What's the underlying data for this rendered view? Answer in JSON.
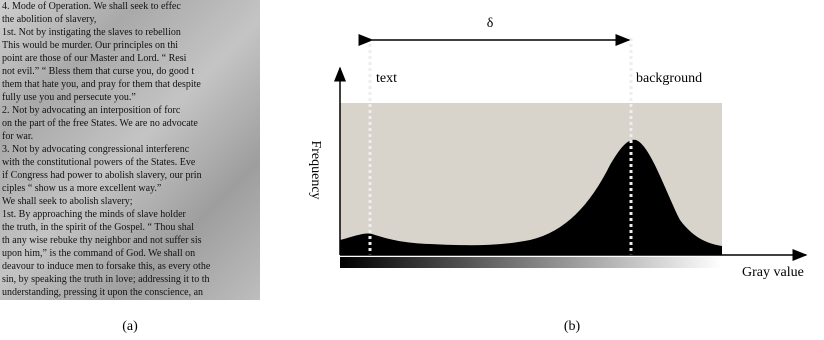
{
  "panel_a": {
    "caption": "(a)",
    "lines": [
      "4.  Mode of Operation.  We shall seek to effec",
      "the abolition of slavery,",
      "1st.  Not by instigating the slaves to rebellion",
      "This would be murder.  Our principles on thi",
      "point are those of our Master and Lord.  “ Resi",
      "not evil.”  “ Bless them that curse you, do good t",
      "them that hate you, and pray for them that despite",
      "fully use you and persecute you.”",
      "2.  Not by advocating an interposition of forc",
      "on the part of the free States.  We are no advocate",
      "for war.",
      "3.  Not by advocating congressional interferenc",
      "with the constitutional powers of the States.  Eve",
      "if Congress had power to abolish slavery, our prin",
      "ciples “ show us a more excellent way.”",
      "We shall seek to abolish slavery;",
      "1st.  By approaching the minds of slave holder",
      "the truth, in the spirit of the Gospel.  “ Thou shal",
      "th any wise rebuke thy neighbor and not suffer sis",
      "upon him,” is the command of God.  We shall on",
      "deavour to induce men to forsake this, as every othe",
      "sin, by speaking the truth in love; addressing it to th",
      "understanding, pressing it upon the conscience, an"
    ]
  },
  "panel_b": {
    "caption": "(b)",
    "delta": "δ",
    "text_label": "text",
    "background_label": "background",
    "y_label": "Frequency",
    "x_label": "Gray value"
  }
}
